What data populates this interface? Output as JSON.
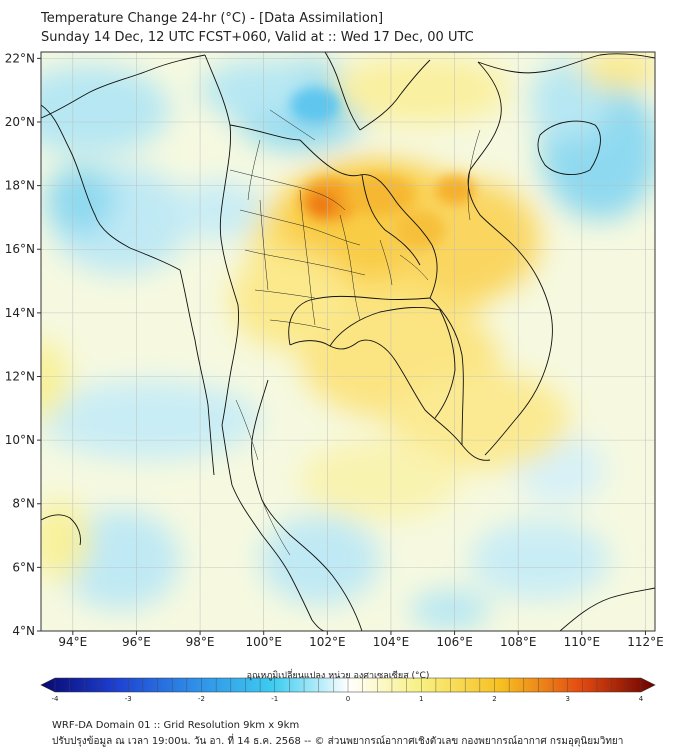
{
  "header": {
    "title": "Temperature Change 24-hr (°C) - [Data Assimilation]",
    "subtitle": "Sunday 14 Dec, 12 UTC FCST+060, Valid at :: Wed 17 Dec, 00 UTC"
  },
  "map": {
    "lon_labels": [
      "94°E",
      "96°E",
      "98°E",
      "100°E",
      "102°E",
      "104°E",
      "106°E",
      "108°E",
      "110°E",
      "112°E"
    ],
    "lat_labels": [
      "22°N",
      "20°N",
      "18°N",
      "16°N",
      "14°N",
      "12°N",
      "10°N",
      "8°N",
      "6°N",
      "4°N"
    ],
    "lon_range": [
      93,
      112.3
    ],
    "lat_range": [
      4,
      22.2
    ],
    "border_color": "#111111"
  },
  "colorbar": {
    "title": "อุณหภูมิเปลี่ยนแปลง หน่วย องศาเซลเซียส (°C)",
    "range": [
      -4,
      4
    ],
    "tick_labels": [
      "-4",
      "-3",
      "-2",
      "-1",
      "0",
      "1",
      "2",
      "3",
      "4"
    ],
    "colors": [
      "#08086e",
      "#1d3fd1",
      "#2f8fe8",
      "#3ecdf0",
      "#ffffff",
      "#f8f080",
      "#f7bf20",
      "#f06a10",
      "#c01010",
      "#6b0000"
    ]
  },
  "footer": {
    "line1": "WRF-DA Domain 01 :: Grid Resolution 9km x 9km",
    "line2": "ปรับปรุงข้อมูล ณ เวลา 19:00น. วัน อา. ที่ 14 ธ.ค. 2568 -- © ส่วนพยากรณ์อากาศเชิงตัวเลข กองพยากรณ์อากาศ กรมอุตุนิยมวิทยา"
  }
}
